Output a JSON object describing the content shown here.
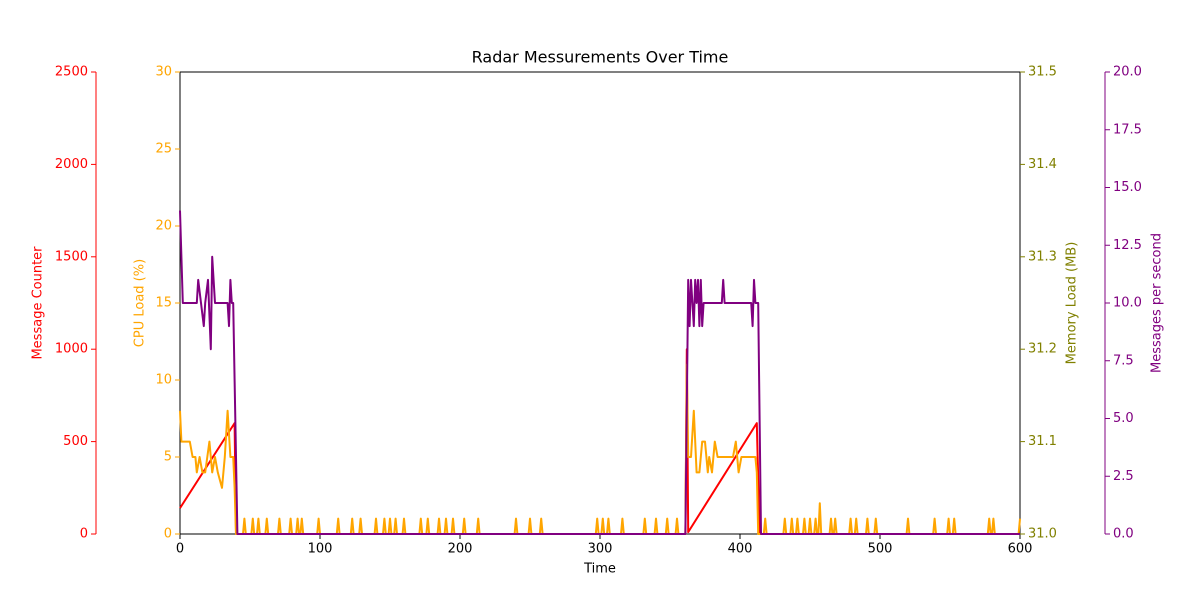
{
  "chart_data": {
    "type": "line",
    "title": "Radar Messurements Over Time",
    "xlabel": "Time",
    "xlim": [
      0,
      600
    ],
    "xticks": [
      0,
      100,
      200,
      300,
      400,
      500,
      600
    ],
    "y_axes": [
      {
        "label": "Message Counter",
        "color": "#ff0000",
        "lim": [
          0,
          2500
        ],
        "ticks": [
          0,
          500,
          1000,
          1500,
          2000,
          2500
        ]
      },
      {
        "label": "CPU Load (%)",
        "color": "#ffa500",
        "lim": [
          0,
          30
        ],
        "ticks": [
          0,
          5,
          10,
          15,
          20,
          25,
          30
        ]
      },
      {
        "label": "Memory Load (MB)",
        "color": "#808000",
        "lim": [
          31.0,
          31.5
        ],
        "ticks": [
          {
            "value": 31.0,
            "label": "31.0"
          },
          31.1,
          31.2,
          31.3,
          31.4,
          31.5
        ]
      },
      {
        "label": "Messages per second",
        "color": "#800080",
        "lim": [
          0,
          20
        ],
        "ticks": [
          {
            "value": 0,
            "label": "0.0"
          },
          2.5,
          {
            "value": 5,
            "label": "5.0"
          },
          7.5,
          {
            "value": 10,
            "label": "10.0"
          },
          12.5,
          {
            "value": 15,
            "label": "15.0"
          },
          17.5,
          {
            "value": 20,
            "label": "20.0"
          }
        ]
      }
    ],
    "series": [
      {
        "name": "Message Counter",
        "axis": 0,
        "color": "#ff0000",
        "x": [
          0,
          39,
          40,
          361,
          362,
          363,
          412,
          414,
          600
        ],
        "values": [
          140,
          600,
          0,
          0,
          1000,
          10,
          600,
          0,
          0
        ]
      },
      {
        "name": "CPU Load (%)",
        "axis": 1,
        "color": "#ffa500",
        "x": [
          0,
          1,
          7,
          9,
          11,
          12,
          14,
          16,
          18,
          21,
          23,
          25,
          27,
          30,
          32,
          34,
          36,
          38,
          39,
          40,
          45,
          46,
          47,
          51,
          52,
          53,
          55,
          56,
          57,
          61,
          62,
          63,
          70,
          71,
          72,
          78,
          79,
          80,
          83,
          84,
          85,
          86,
          87,
          88,
          98,
          99,
          100,
          112,
          113,
          114,
          122,
          123,
          124,
          128,
          129,
          130,
          139,
          140,
          141,
          145,
          146,
          147,
          149,
          150,
          151,
          153,
          154,
          155,
          159,
          160,
          161,
          171,
          172,
          173,
          176,
          177,
          178,
          184,
          185,
          186,
          189,
          190,
          191,
          194,
          195,
          196,
          202,
          203,
          204,
          212,
          213,
          214,
          239,
          240,
          241,
          249,
          250,
          251,
          257,
          258,
          259,
          297,
          298,
          299,
          301,
          302,
          303,
          305,
          306,
          307,
          315,
          316,
          317,
          331,
          332,
          333,
          339,
          340,
          341,
          347,
          348,
          349,
          354,
          355,
          356,
          361,
          362,
          363,
          365,
          367,
          369,
          371,
          373,
          375,
          377,
          378,
          380,
          382,
          384,
          395,
          397,
          399,
          401,
          411,
          412,
          413,
          417,
          418,
          419,
          431,
          432,
          433,
          436,
          437,
          438,
          440,
          441,
          442,
          445,
          446,
          447,
          449,
          450,
          451,
          453,
          454,
          455,
          456,
          457,
          458,
          464,
          465,
          466,
          467,
          468,
          469,
          478,
          479,
          480,
          482,
          483,
          484,
          490,
          491,
          492,
          496,
          497,
          498,
          519,
          520,
          521,
          538,
          539,
          540,
          548,
          549,
          550,
          552,
          553,
          554,
          577,
          578,
          579,
          580,
          581,
          582,
          599,
          600
        ],
        "values": [
          8,
          6,
          6,
          5,
          5,
          4,
          5,
          4,
          4,
          6,
          4,
          5,
          4,
          3,
          5,
          8,
          5,
          5,
          3,
          0,
          0,
          1,
          0,
          0,
          1,
          0,
          0,
          1,
          0,
          0,
          1,
          0,
          0,
          1,
          0,
          0,
          1,
          0,
          0,
          1,
          0,
          0,
          1,
          0,
          0,
          1,
          0,
          0,
          1,
          0,
          0,
          1,
          0,
          0,
          1,
          0,
          0,
          1,
          0,
          0,
          1,
          0,
          0,
          1,
          0,
          0,
          1,
          0,
          0,
          1,
          0,
          0,
          1,
          0,
          0,
          1,
          0,
          0,
          1,
          0,
          0,
          1,
          0,
          0,
          1,
          0,
          0,
          1,
          0,
          0,
          1,
          0,
          0,
          1,
          0,
          0,
          1,
          0,
          0,
          1,
          0,
          0,
          1,
          0,
          0,
          1,
          0,
          0,
          1,
          0,
          0,
          1,
          0,
          0,
          1,
          0,
          0,
          1,
          0,
          0,
          1,
          0,
          0,
          1,
          0,
          0,
          11,
          5,
          5,
          8,
          4,
          4,
          6,
          6,
          4,
          5,
          4,
          6,
          5,
          5,
          6,
          4,
          5,
          5,
          4,
          0,
          0,
          1,
          0,
          0,
          1,
          0,
          0,
          1,
          0,
          0,
          1,
          0,
          0,
          1,
          0,
          0,
          1,
          0,
          0,
          1,
          0,
          0,
          2,
          0,
          0,
          1,
          0,
          0,
          1,
          0,
          0,
          1,
          0,
          0,
          1,
          0,
          0,
          1,
          0,
          0,
          1,
          0,
          0,
          1,
          0,
          0,
          1,
          0,
          0,
          1,
          0,
          0,
          1,
          0,
          0,
          1,
          0,
          0,
          1,
          0,
          0,
          1
        ]
      },
      {
        "name": "Messages per second",
        "axis": 3,
        "color": "#800080",
        "x": [
          0,
          2,
          12,
          13,
          15,
          17,
          18,
          20,
          22,
          23,
          25,
          34,
          35,
          36,
          37,
          38,
          41,
          361,
          363,
          364,
          365,
          366,
          367,
          368,
          369,
          370,
          371,
          372,
          373,
          374,
          387,
          388,
          389,
          408,
          409,
          410,
          411,
          413,
          415,
          600
        ],
        "values": [
          14,
          10,
          10,
          11,
          10,
          9,
          10,
          11,
          8,
          12,
          10,
          10,
          9,
          11,
          10,
          10,
          0,
          0,
          11,
          9,
          11,
          10,
          9,
          11,
          10,
          11,
          9,
          11,
          9,
          10,
          10,
          11,
          10,
          10,
          9,
          11,
          10,
          10,
          0,
          0
        ]
      }
    ]
  }
}
